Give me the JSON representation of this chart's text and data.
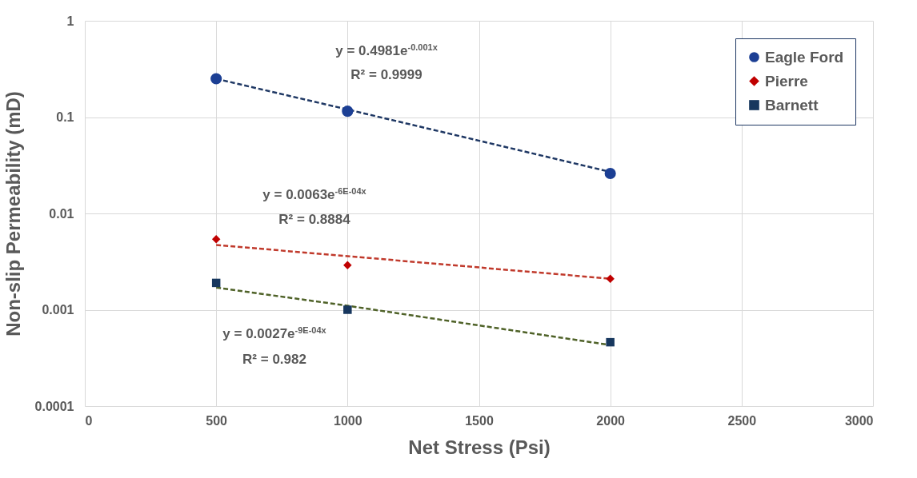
{
  "chart_data": {
    "type": "scatter",
    "xlabel": "Net Stress (Psi)",
    "ylabel": "Non-slip Permeability (mD)",
    "x": [
      500,
      1000,
      2000
    ],
    "series": [
      {
        "name": "Eagle Ford",
        "color": "#1c3f94",
        "marker": "circle",
        "values": [
          0.25,
          0.115,
          0.026
        ]
      },
      {
        "name": "Pierre",
        "color": "#c00000",
        "marker": "diamond",
        "values": [
          0.0054,
          0.0029,
          0.0021
        ]
      },
      {
        "name": "Barnett",
        "color": "#17375e",
        "marker": "square",
        "values": [
          0.0019,
          0.001,
          0.00046
        ]
      },
      {
        "type": "line",
        "color": "#1f3864",
        "line_style": "dashed",
        "values": [
          0.25,
          0.12,
          0.027
        ]
      },
      {
        "type": "line",
        "color": "#c0392b",
        "line_style": "dashed",
        "values": [
          0.0047,
          0.0036,
          0.0021
        ]
      },
      {
        "type": "line",
        "color": "#4f6228",
        "line_style": "dashed",
        "values": [
          0.0017,
          0.0011,
          0.00043
        ]
      }
    ],
    "annotations": [
      "y = 0.4981e$^{-0.001x}$",
      "R² = 0.9999",
      "y = 0.0063e$^{-6E-04x}$",
      "R² = 0.8884",
      "y = 0.0027e$^{-9E-04x}$",
      "R² = 0.982"
    ],
    "log": "y",
    "xlim": [
      0,
      3000
    ],
    "xticks": [
      0,
      500,
      1000,
      1500,
      2000,
      2500,
      3000
    ],
    "ylim": [
      0.0001,
      1
    ],
    "yticks": [
      0.0001,
      0.001,
      0.01,
      0.1,
      1
    ],
    "grid": true,
    "legend": "top right"
  }
}
